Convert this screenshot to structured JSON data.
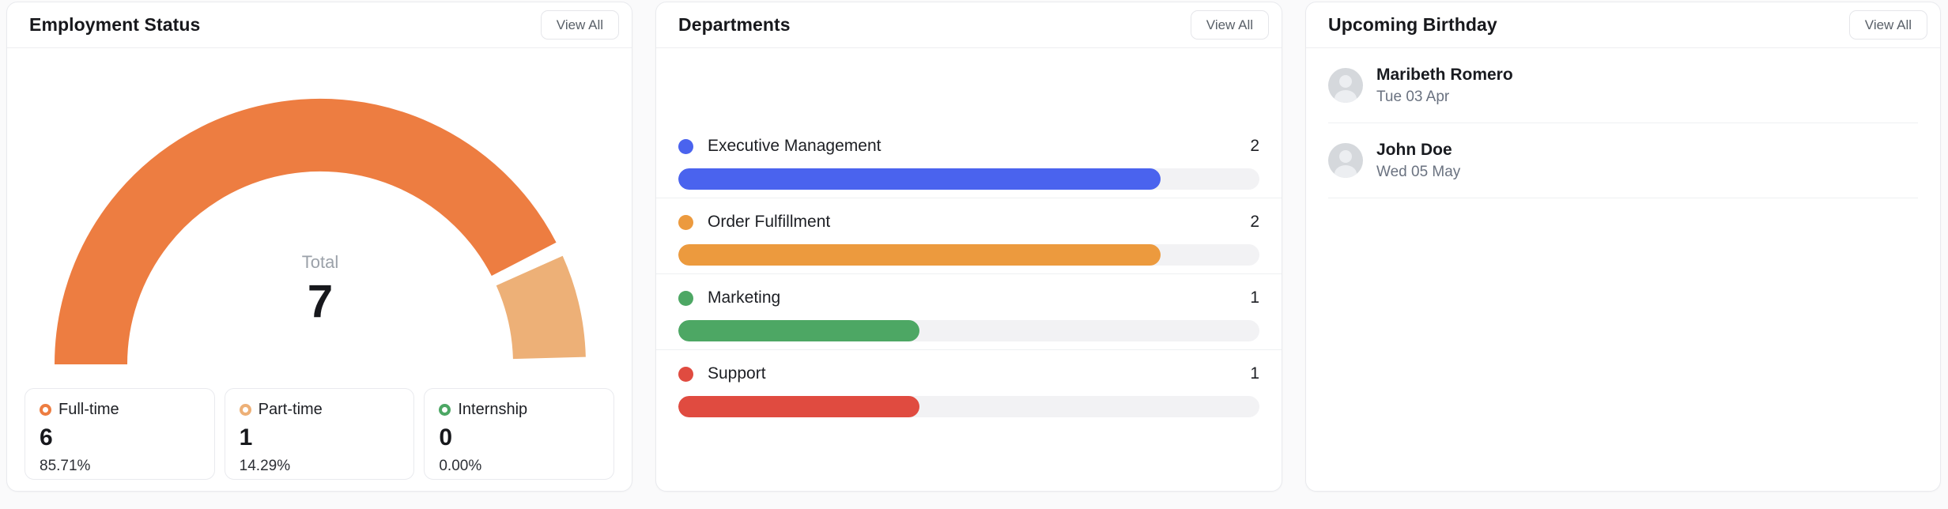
{
  "panels": {
    "employment": {
      "title": "Employment Status",
      "view_all_label": "View All",
      "gauge": {
        "total_label": "Total",
        "total_value": "7"
      },
      "stats": [
        {
          "label": "Full-time",
          "value": "6",
          "pct": "85.71%",
          "color": "#ed7d41"
        },
        {
          "label": "Part-time",
          "value": "1",
          "pct": "14.29%",
          "color": "#edb077"
        },
        {
          "label": "Internship",
          "value": "0",
          "pct": "0.00%",
          "color": "#4ca764"
        }
      ]
    },
    "departments": {
      "title": "Departments",
      "view_all_label": "View All",
      "rows": [
        {
          "label": "Executive Management",
          "count": "2",
          "color": "#4a63ee",
          "fill_pct": 83
        },
        {
          "label": "Order Fulfillment",
          "count": "2",
          "color": "#ec9a3e",
          "fill_pct": 83
        },
        {
          "label": "Marketing",
          "count": "1",
          "color": "#4da764",
          "fill_pct": 41.5
        },
        {
          "label": "Support",
          "count": "1",
          "color": "#e04b40",
          "fill_pct": 41.5
        }
      ]
    },
    "birthdays": {
      "title": "Upcoming Birthday",
      "view_all_label": "View All",
      "rows": [
        {
          "name": "Maribeth Romero",
          "date": "Tue 03 Apr"
        },
        {
          "name": "John Doe",
          "date": "Wed 05 May"
        }
      ]
    }
  },
  "chart_data": [
    {
      "type": "pie",
      "subtype": "half-donut-gauge",
      "title": "Employment Status",
      "center_label": "Total",
      "center_value": 7,
      "legend_position": "bottom-cards",
      "slices": [
        {
          "label": "Full-time",
          "value": 6,
          "pct": "85.71%",
          "color": "#ed7d41"
        },
        {
          "label": "Part-time",
          "value": 1,
          "pct": "14.29%",
          "color": "#edb077"
        },
        {
          "label": "Internship",
          "value": 0,
          "pct": "0.00%",
          "color": "#4ca764"
        }
      ]
    },
    {
      "type": "bar",
      "orientation": "horizontal",
      "title": "Departments",
      "categories": [
        "Executive Management",
        "Order Fulfillment",
        "Marketing",
        "Support"
      ],
      "values": [
        2,
        2,
        1,
        1
      ],
      "colors": [
        "#4a63ee",
        "#ec9a3e",
        "#4da764",
        "#e04b40"
      ],
      "fill_pct": [
        83,
        83,
        41.5,
        41.5
      ],
      "xlabel": "",
      "ylabel": "",
      "grid": false
    }
  ]
}
